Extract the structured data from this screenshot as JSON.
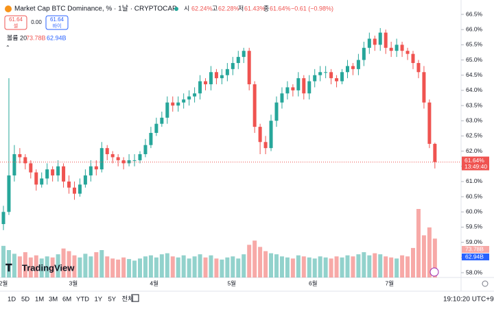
{
  "header": {
    "title": "Market Cap BTC Dominance, % · 1날 · CRYPTOCAP",
    "o_label": "시",
    "o": "62.24%",
    "h_label": "고",
    "h": "62.28%",
    "l_label": "저",
    "l": "61.43%",
    "c_label": "종",
    "c": "61.64%",
    "change": "−0.61 (−0.98%)",
    "sell_price": "61.64",
    "sell": "셀",
    "spread": "0.00",
    "buy_price": "61.64",
    "buy": "바이",
    "volume_title": "볼륨 20",
    "volume_value": "73.78B",
    "volume_ma": "62.94B",
    "logo": "TradingView",
    "price_tag": "61.64%",
    "countdown": "13:49:40",
    "clock": "19:10:20 UTC+9"
  },
  "toolbar": [
    "1D",
    "5D",
    "1M",
    "3M",
    "6M",
    "YTD",
    "1Y",
    "5Y",
    "전체"
  ],
  "chart_data": {
    "type": "candlestick",
    "up_color": "#26a69a",
    "down_color": "#ef5350",
    "open": [
      59.6,
      60.0,
      61.2,
      61.9,
      61.8,
      61.6,
      61.3,
      60.9,
      61.1,
      61.4,
      61.2,
      61.5,
      61.0,
      60.8,
      60.6,
      60.9,
      61.2,
      61.5,
      61.4,
      62.1,
      61.9,
      61.8,
      61.7,
      61.6,
      61.7,
      61.7,
      61.9,
      62.2,
      62.6,
      62.9,
      63.1,
      63.6,
      63.5,
      63.6,
      63.7,
      63.8,
      63.9,
      64.3,
      64.2,
      64.6,
      64.4,
      64.5,
      64.7,
      64.9,
      65.1,
      65.3,
      64.2,
      62.8,
      62.3,
      62.1,
      63.0,
      63.6,
      63.9,
      64.1,
      64.0,
      64.4,
      63.9,
      64.3,
      64.5,
      64.6,
      64.6,
      64.4,
      64.3,
      64.6,
      64.8,
      64.7,
      65.0,
      65.4,
      65.7,
      65.5,
      65.9,
      65.4,
      65.3,
      65.5,
      65.3,
      65.2,
      64.9,
      64.6,
      63.6,
      62.24
    ],
    "high": [
      60.2,
      64.4,
      62.2,
      62.1,
      61.9,
      61.7,
      61.4,
      61.3,
      61.6,
      61.5,
      61.7,
      61.6,
      61.2,
      61.0,
      61.1,
      61.4,
      61.7,
      61.7,
      62.3,
      62.2,
      62.0,
      61.9,
      61.8,
      61.9,
      61.9,
      62.0,
      62.4,
      62.8,
      63.1,
      63.3,
      63.8,
      63.8,
      63.8,
      63.9,
      64.0,
      64.1,
      64.5,
      64.4,
      64.8,
      64.7,
      64.7,
      64.9,
      65.1,
      65.3,
      65.4,
      65.4,
      64.3,
      62.9,
      62.5,
      63.2,
      63.8,
      64.1,
      64.3,
      64.2,
      64.6,
      64.5,
      64.5,
      64.7,
      64.8,
      64.8,
      64.7,
      64.5,
      64.7,
      65.0,
      64.9,
      65.2,
      65.6,
      65.9,
      65.8,
      66.05,
      66.0,
      65.6,
      65.7,
      65.6,
      65.4,
      65.3,
      65.0,
      64.8,
      63.7,
      62.28
    ],
    "low": [
      59.4,
      59.9,
      61.0,
      61.6,
      61.4,
      61.1,
      60.7,
      60.8,
      60.9,
      61.0,
      61.0,
      60.8,
      60.6,
      60.4,
      60.5,
      60.8,
      61.0,
      61.2,
      61.3,
      61.7,
      61.6,
      61.5,
      61.4,
      61.5,
      61.5,
      61.6,
      61.8,
      62.1,
      62.5,
      62.8,
      62.9,
      63.3,
      63.3,
      63.4,
      63.5,
      63.6,
      63.7,
      64.0,
      64.0,
      64.2,
      64.2,
      64.3,
      64.5,
      64.7,
      64.9,
      64.0,
      62.6,
      61.9,
      61.9,
      62.0,
      62.8,
      63.4,
      63.7,
      63.8,
      63.8,
      63.7,
      63.7,
      64.1,
      64.3,
      64.4,
      64.2,
      64.1,
      64.2,
      64.4,
      64.5,
      64.5,
      64.8,
      65.2,
      65.3,
      65.3,
      65.2,
      65.1,
      65.1,
      65.1,
      65.0,
      64.7,
      64.4,
      63.4,
      62.1,
      61.43
    ],
    "close": [
      60.0,
      61.2,
      61.9,
      61.8,
      61.6,
      61.3,
      60.9,
      61.1,
      61.4,
      61.2,
      61.5,
      61.0,
      60.8,
      60.6,
      60.9,
      61.2,
      61.5,
      61.4,
      62.1,
      61.9,
      61.8,
      61.7,
      61.6,
      61.7,
      61.7,
      61.9,
      62.2,
      62.6,
      62.9,
      63.1,
      63.6,
      63.5,
      63.6,
      63.7,
      63.8,
      63.9,
      64.3,
      64.2,
      64.6,
      64.4,
      64.5,
      64.7,
      64.9,
      65.1,
      65.3,
      64.2,
      62.8,
      62.3,
      62.1,
      63.0,
      63.6,
      63.9,
      64.1,
      64.0,
      64.4,
      63.9,
      64.3,
      64.5,
      64.6,
      64.6,
      64.4,
      64.3,
      64.6,
      64.8,
      64.7,
      65.0,
      65.4,
      65.7,
      65.5,
      65.9,
      65.4,
      65.3,
      65.5,
      65.3,
      65.2,
      64.9,
      64.6,
      63.6,
      62.24,
      61.64
    ],
    "volume": [
      60,
      52,
      45,
      40,
      48,
      38,
      42,
      36,
      40,
      38,
      44,
      55,
      50,
      42,
      38,
      45,
      40,
      48,
      52,
      40,
      36,
      34,
      38,
      35,
      32,
      36,
      40,
      42,
      38,
      44,
      46,
      40,
      38,
      42,
      36,
      40,
      44,
      38,
      42,
      36,
      34,
      38,
      40,
      36,
      44,
      62,
      70,
      58,
      50,
      46,
      44,
      40,
      38,
      36,
      42,
      40,
      38,
      36,
      40,
      38,
      36,
      40,
      38,
      42,
      40,
      44,
      48,
      42,
      46,
      44,
      40,
      38,
      36,
      42,
      40,
      56,
      130,
      80,
      95,
      73.78
    ],
    "xticks": [
      {
        "value": 0,
        "label": "2월"
      },
      {
        "value": 12.8,
        "label": "3월"
      },
      {
        "value": 27.6,
        "label": "4월"
      },
      {
        "value": 41.8,
        "label": "5월"
      },
      {
        "value": 56.7,
        "label": "6월"
      },
      {
        "value": 70.7,
        "label": "7월"
      }
    ],
    "ylim": [
      58,
      66.5
    ],
    "yticks": [
      {
        "value": 58,
        "label": "58.0%"
      },
      {
        "value": 58.5,
        "label": "58.5%"
      },
      {
        "value": 59,
        "label": "59.0%"
      },
      {
        "value": 59.5,
        "label": "59.5%"
      },
      {
        "value": 60,
        "label": "60.0%"
      },
      {
        "value": 60.5,
        "label": "60.5%"
      },
      {
        "value": 61,
        "label": "61.0%"
      },
      {
        "value": 61.5,
        "label": "61.5%"
      },
      {
        "value": 62,
        "label": "62.0%"
      },
      {
        "value": 62.5,
        "label": "62.5%"
      },
      {
        "value": 63,
        "label": "63.0%"
      },
      {
        "value": 63.5,
        "label": "63.5%"
      },
      {
        "value": 64,
        "label": "64.0%"
      },
      {
        "value": 64.5,
        "label": "64.5%"
      },
      {
        "value": 65,
        "label": "65.0%"
      },
      {
        "value": 65.5,
        "label": "65.5%"
      },
      {
        "value": 66,
        "label": "66.0%"
      },
      {
        "value": 66.5,
        "label": "66.5%"
      }
    ]
  }
}
